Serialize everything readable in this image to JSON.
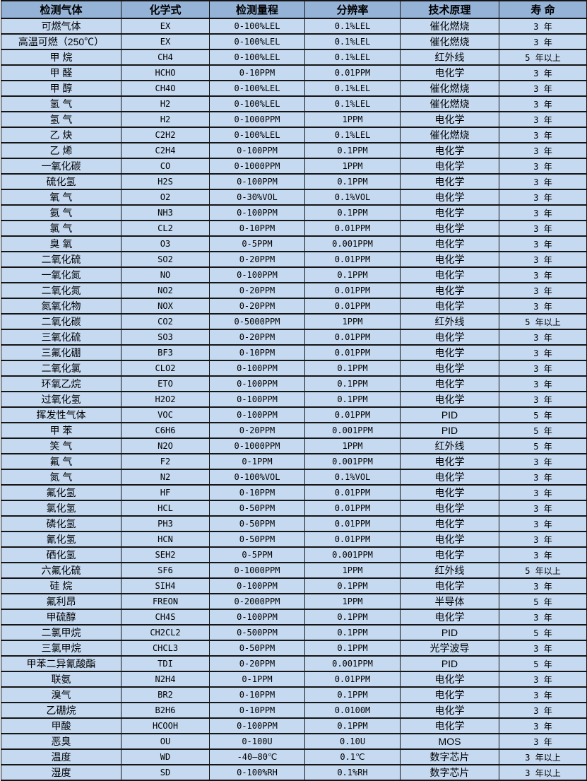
{
  "colors": {
    "header_bg": "#95b3d7",
    "row_bg": "#c5d9f1",
    "border": "#151515",
    "text": "#000000"
  },
  "table": {
    "headers": [
      "检测气体",
      "化学式",
      "检测量程",
      "分辨率",
      "技术原理",
      "寿 命"
    ],
    "column_names": [
      "gas-name",
      "chemical-formula",
      "detection-range",
      "resolution",
      "technology-principle",
      "lifespan"
    ],
    "rows": [
      [
        "可燃气体",
        "EX",
        "0-100%LEL",
        "0.1%LEL",
        "催化燃烧",
        "3 年"
      ],
      [
        "高温可燃（250℃）",
        "EX",
        "0-100%LEL",
        "0.1%LEL",
        "催化燃烧",
        "3 年"
      ],
      [
        "甲 烷",
        "CH4",
        "0-100%LEL",
        "0.1%LEL",
        "红外线",
        "5 年以上"
      ],
      [
        "甲 醛",
        "HCHO",
        "0-10PPM",
        "0.01PPM",
        "电化学",
        "3 年"
      ],
      [
        "甲 醇",
        "CH4O",
        "0-100%LEL",
        "0.1%LEL",
        "催化燃烧",
        "3 年"
      ],
      [
        "氢 气",
        "H2",
        "0-100%LEL",
        "0.1%LEL",
        "催化燃烧",
        "3 年"
      ],
      [
        "氢 气",
        "H2",
        "0-1000PPM",
        "1PPM",
        "电化学",
        "3 年"
      ],
      [
        "乙 炔",
        "C2H2",
        "0-100%LEL",
        "0.1%LEL",
        "催化燃烧",
        "3 年"
      ],
      [
        "乙 烯",
        "C2H4",
        "0-100PPM",
        "0.1PPM",
        "电化学",
        "3 年"
      ],
      [
        "一氧化碳",
        "CO",
        "0-1000PPM",
        "1PPM",
        "电化学",
        "3 年"
      ],
      [
        "硫化氢",
        "H2S",
        "0-100PPM",
        "0.1PPM",
        "电化学",
        "3 年"
      ],
      [
        "氧 气",
        "O2",
        "0-30%VOL",
        "0.1%VOL",
        "电化学",
        "3 年"
      ],
      [
        "氨 气",
        "NH3",
        "0-100PPM",
        "0.1PPM",
        "电化学",
        "3 年"
      ],
      [
        "氯 气",
        "CL2",
        "0-10PPM",
        "0.01PPM",
        "电化学",
        "3 年"
      ],
      [
        "臭 氧",
        "O3",
        "0-5PPM",
        "0.001PPM",
        "电化学",
        "3 年"
      ],
      [
        "二氧化硫",
        "SO2",
        "0-20PPM",
        "0.01PPM",
        "电化学",
        "3 年"
      ],
      [
        "一氧化氮",
        "NO",
        "0-100PPM",
        "0.1PPM",
        "电化学",
        "3 年"
      ],
      [
        "二氧化氮",
        "NO2",
        "0-20PPM",
        "0.01PPM",
        "电化学",
        "3 年"
      ],
      [
        "氮氧化物",
        "NOX",
        "0-20PPM",
        "0.01PPM",
        "电化学",
        "3 年"
      ],
      [
        "二氧化碳",
        "CO2",
        "0-5000PPM",
        "1PPM",
        "红外线",
        "5 年以上"
      ],
      [
        "三氧化硫",
        "SO3",
        "0-20PPM",
        "0.01PPM",
        "电化学",
        "3 年"
      ],
      [
        "三氟化硼",
        "BF3",
        "0-10PPM",
        "0.01PPM",
        "电化学",
        "3 年"
      ],
      [
        "二氧化氯",
        "CLO2",
        "0-100PPM",
        "0.1PPM",
        "电化学",
        "3 年"
      ],
      [
        "环氧乙烷",
        "ETO",
        "0-100PPM",
        "0.1PPM",
        "电化学",
        "3 年"
      ],
      [
        "过氧化氢",
        "H2O2",
        "0-100PPM",
        "0.1PPM",
        "电化学",
        "3 年"
      ],
      [
        "挥发性气体",
        "VOC",
        "0-100PPM",
        "0.01PPM",
        "PID",
        "5 年"
      ],
      [
        "甲 苯",
        "C6H6",
        "0-20PPM",
        "0.001PPM",
        "PID",
        "5 年"
      ],
      [
        "笑 气",
        "N2O",
        "0-1000PPM",
        "1PPM",
        "红外线",
        "5 年"
      ],
      [
        "氟 气",
        "F2",
        "0-1PPM",
        "0.001PPM",
        "电化学",
        "3 年"
      ],
      [
        "氮 气",
        "N2",
        "0-100%VOL",
        "0.1%VOL",
        "电化学",
        "3 年"
      ],
      [
        "氟化氢",
        "HF",
        "0-10PPM",
        "0.01PPM",
        "电化学",
        "3 年"
      ],
      [
        "氯化氢",
        "HCL",
        "0-50PPM",
        "0.01PPM",
        "电化学",
        "3 年"
      ],
      [
        "磷化氢",
        "PH3",
        "0-50PPM",
        "0.01PPM",
        "电化学",
        "3 年"
      ],
      [
        "氰化氢",
        "HCN",
        "0-50PPM",
        "0.01PPM",
        "电化学",
        "3 年"
      ],
      [
        "硒化氢",
        "SEH2",
        "0-5PPM",
        "0.001PPM",
        "电化学",
        "3 年"
      ],
      [
        "六氟化硫",
        "SF6",
        "0-1000PPM",
        "1PPM",
        "红外线",
        "5 年以上"
      ],
      [
        "硅 烷",
        "SIH4",
        "0-100PPM",
        "0.1PPM",
        "电化学",
        "3 年"
      ],
      [
        "氟利昂",
        "FREON",
        "0-2000PPM",
        "1PPM",
        "半导体",
        "5 年"
      ],
      [
        "甲硫醇",
        "CH4S",
        "0-100PPM",
        "0.1PPM",
        "电化学",
        "3 年"
      ],
      [
        "二氯甲烷",
        "CH2CL2",
        "0-500PPM",
        "0.1PPM",
        "PID",
        "5 年"
      ],
      [
        "三氯甲烷",
        "CHCL3",
        "0-50PPM",
        "0.1PPM",
        "光学波导",
        "3 年"
      ],
      [
        "甲苯二异氰酸酯",
        "TDI",
        "0-20PPM",
        "0.001PPM",
        "PID",
        "5 年"
      ],
      [
        "联氨",
        "N2H4",
        "0-1PPM",
        "0.01PPM",
        "电化学",
        "3 年"
      ],
      [
        "溴气",
        "BR2",
        "0-10PPM",
        "0.1PPM",
        "电化学",
        "3 年"
      ],
      [
        "乙硼烷",
        "B2H6",
        "0-10PPM",
        "0.0100M",
        "电化学",
        "3 年"
      ],
      [
        "甲酸",
        "HCOOH",
        "0-100PPM",
        "0.1PPM",
        "电化学",
        "3 年"
      ],
      [
        "恶臭",
        "OU",
        "0-100U",
        "0.10U",
        "MOS",
        "3 年"
      ],
      [
        "温度",
        "WD",
        "-40—80℃",
        "0.1℃",
        "数字芯片",
        "3 年以上"
      ],
      [
        "湿度",
        "SD",
        "0-100%RH",
        "0.1%RH",
        "数字芯片",
        "3 年以上"
      ]
    ]
  }
}
